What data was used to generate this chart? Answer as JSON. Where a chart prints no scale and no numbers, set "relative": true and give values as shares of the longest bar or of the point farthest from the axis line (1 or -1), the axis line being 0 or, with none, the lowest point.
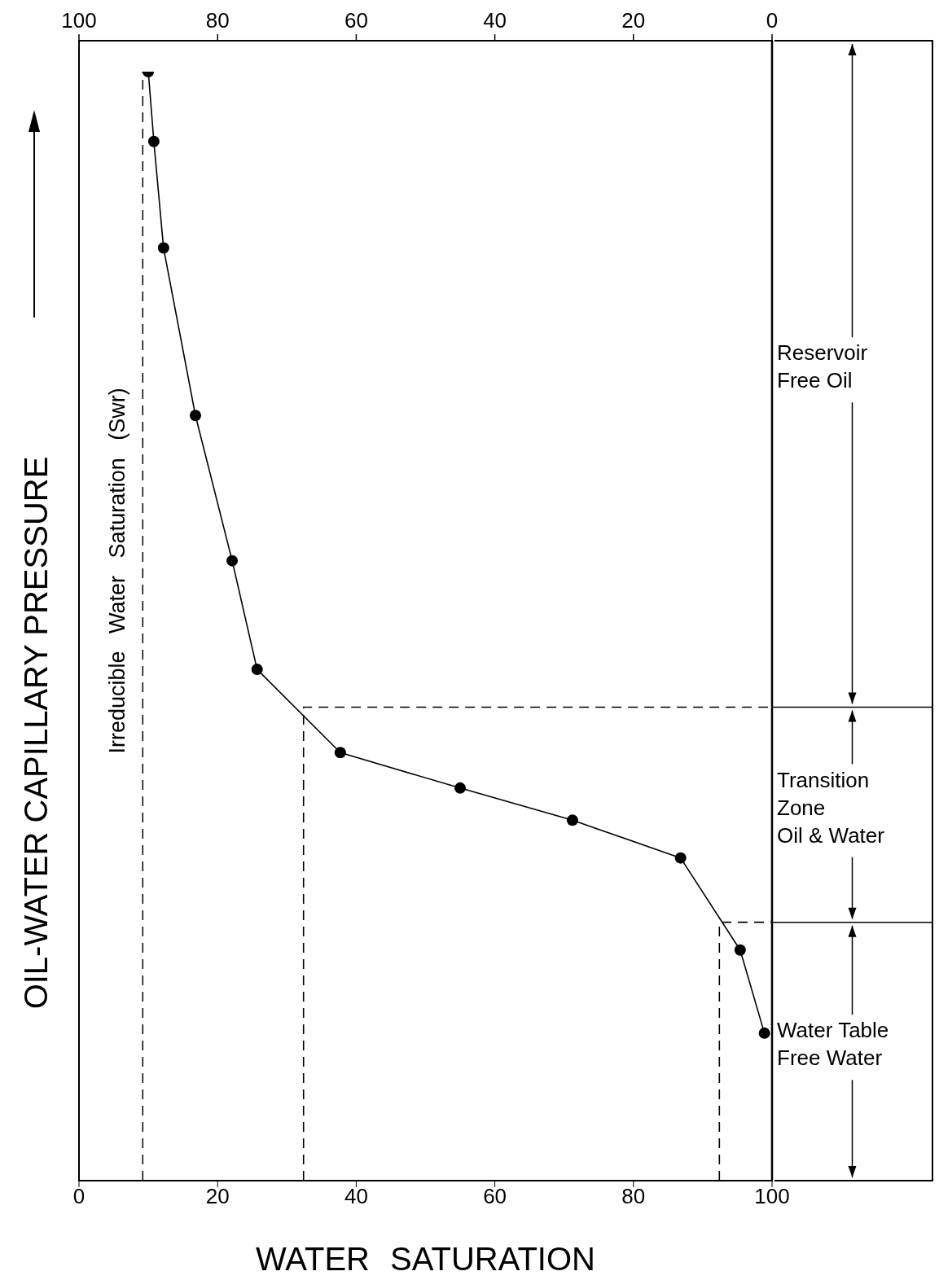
{
  "chart_data": {
    "type": "line",
    "relative": true,
    "xlabel": "WATER SATURATION",
    "ylabel": "OIL-WATER CAPILLARY PRESSURE",
    "xlim": [
      0,
      100
    ],
    "xticks": [
      0,
      20,
      40,
      60,
      80,
      100
    ],
    "x2lim": [
      100,
      0
    ],
    "x2ticks": [
      100,
      80,
      60,
      40,
      20,
      0
    ],
    "marker": "circle",
    "series": [
      {
        "color": "#000000",
        "x": [
          10.0,
          10.8,
          12.2,
          16.8,
          22.1,
          25.7,
          37.7,
          55.0,
          71.2,
          86.8,
          95.4,
          98.9
        ],
        "values": [
          1,
          0.937,
          0.841,
          0.69,
          0.559,
          0.461,
          0.386,
          0.354,
          0.325,
          0.291,
          0.208,
          0.133
        ]
      },
      {
        "color": "#000000",
        "marker": "none",
        "line_style": "dashed",
        "x": [
          32.4,
          32.4,
          100
        ],
        "values": [
          0,
          0.427,
          0.427
        ]
      },
      {
        "color": "#000000",
        "marker": "none",
        "line_style": "dashed",
        "x": [
          92.4,
          92.4,
          100
        ],
        "values": [
          0,
          0.233,
          0.233
        ]
      }
    ],
    "ref_lines": [
      {
        "axis": "x",
        "value": 9.2,
        "label": "Irreducible Water Saturation (Swr)",
        "line_style": "dashed",
        "color": "#000000"
      }
    ],
    "annotations": [
      "Reservoir\nFree Oil",
      "Transition\nZone\nOil & Water",
      "Water Table\nFree Water"
    ]
  }
}
